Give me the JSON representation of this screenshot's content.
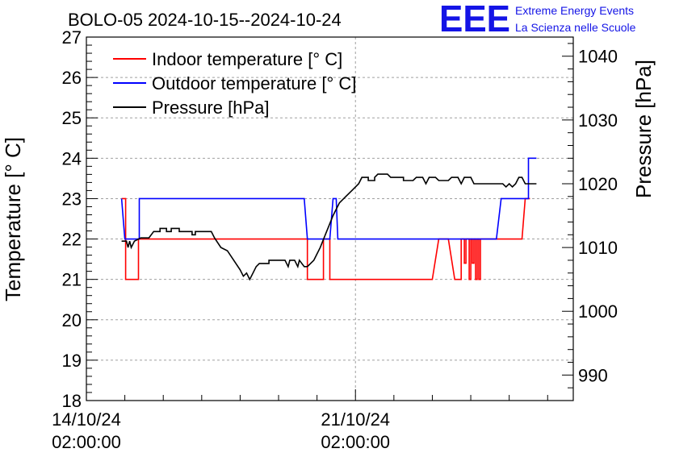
{
  "chart_data": {
    "type": "line",
    "title": "BOLO-05 2024-10-15--2024-10-24",
    "ylabel_left": "Temperature [° C]",
    "ylabel_right": "Pressure [hPa]",
    "ylim_left": [
      18,
      27
    ],
    "ylim_right": [
      986,
      1043
    ],
    "yticks_left": [
      "18",
      "19",
      "20",
      "21",
      "22",
      "23",
      "24",
      "25",
      "26",
      "27"
    ],
    "yticks_right": [
      "990",
      "1000",
      "1010",
      "1020",
      "1030",
      "1040"
    ],
    "xlim": [
      "2024-10-14T02:00",
      "2024-10-26T18:00"
    ],
    "xticks": [
      {
        "date": "14/10/24",
        "time": "02:00:00"
      },
      {
        "date": "21/10/24",
        "time": "02:00:00"
      }
    ],
    "grid": true,
    "legend_position": "top-left",
    "series": [
      {
        "name": "Indoor temperature [° C]",
        "color": "#ff0000",
        "axis": "left",
        "points": [
          [
            "2024-10-15T00:00",
            23
          ],
          [
            "2024-10-15T02:30",
            23
          ],
          [
            "2024-10-15T02:30",
            21
          ],
          [
            "2024-10-15T10:30",
            21
          ],
          [
            "2024-10-15T10:30",
            22
          ],
          [
            "2024-10-19T20:00",
            22
          ],
          [
            "2024-10-19T20:00",
            21
          ],
          [
            "2024-10-20T06:00",
            21
          ],
          [
            "2024-10-20T06:00",
            22
          ],
          [
            "2024-10-20T10:00",
            22
          ],
          [
            "2024-10-20T10:00",
            21
          ],
          [
            "2024-10-23T02:00",
            21
          ],
          [
            "2024-10-23T06:00",
            22
          ],
          [
            "2024-10-23T12:00",
            22
          ],
          [
            "2024-10-23T16:00",
            21
          ],
          [
            "2024-10-23T20:00",
            21
          ],
          [
            "2024-10-23T20:00",
            22
          ],
          [
            "2024-10-23T22:00",
            22
          ],
          [
            "2024-10-23T22:00",
            21.4
          ],
          [
            "2024-10-23T23:00",
            21.4
          ],
          [
            "2024-10-23T23:00",
            22
          ],
          [
            "2024-10-24T01:00",
            22
          ],
          [
            "2024-10-24T01:00",
            21
          ],
          [
            "2024-10-24T02:00",
            21
          ],
          [
            "2024-10-24T02:00",
            22
          ],
          [
            "2024-10-24T03:00",
            22
          ],
          [
            "2024-10-24T03:00",
            21.4
          ],
          [
            "2024-10-24T04:00",
            21.4
          ],
          [
            "2024-10-24T04:00",
            22
          ],
          [
            "2024-10-24T05:00",
            22
          ],
          [
            "2024-10-24T05:00",
            21
          ],
          [
            "2024-10-24T06:00",
            21
          ],
          [
            "2024-10-24T06:00",
            22
          ],
          [
            "2024-10-24T07:00",
            22
          ],
          [
            "2024-10-24T07:00",
            21
          ],
          [
            "2024-10-24T08:00",
            21
          ],
          [
            "2024-10-24T08:00",
            22
          ],
          [
            "2024-10-25T10:00",
            22
          ],
          [
            "2024-10-25T12:00",
            23
          ],
          [
            "2024-10-25T15:00",
            23
          ]
        ]
      },
      {
        "name": "Outdoor temperature [° C]",
        "color": "#0000ff",
        "axis": "left",
        "points": [
          [
            "2024-10-15T00:00",
            23
          ],
          [
            "2024-10-15T02:00",
            22
          ],
          [
            "2024-10-15T11:00",
            22
          ],
          [
            "2024-10-15T11:00",
            23
          ],
          [
            "2024-10-19T18:00",
            23
          ],
          [
            "2024-10-19T20:00",
            22
          ],
          [
            "2024-10-20T10:00",
            22
          ],
          [
            "2024-10-20T12:00",
            23
          ],
          [
            "2024-10-20T14:00",
            23
          ],
          [
            "2024-10-20T15:00",
            22
          ],
          [
            "2024-10-24T18:00",
            22
          ],
          [
            "2024-10-24T21:00",
            23
          ],
          [
            "2024-10-25T14:00",
            23
          ],
          [
            "2024-10-25T14:00",
            24
          ],
          [
            "2024-10-25T19:00",
            24
          ]
        ]
      },
      {
        "name": "Pressure [hPa]",
        "color": "#000000",
        "axis": "right",
        "points": [
          [
            "2024-10-15T00:00",
            1011
          ],
          [
            "2024-10-15T03:00",
            1011
          ],
          [
            "2024-10-15T04:00",
            1010
          ],
          [
            "2024-10-15T05:00",
            1011
          ],
          [
            "2024-10-15T06:00",
            1010
          ],
          [
            "2024-10-15T08:00",
            1011
          ],
          [
            "2024-10-15T12:00",
            1011.5
          ],
          [
            "2024-10-15T17:00",
            1011.5
          ],
          [
            "2024-10-15T20:00",
            1012.5
          ],
          [
            "2024-10-16T00:00",
            1012.5
          ],
          [
            "2024-10-16T00:00",
            1013
          ],
          [
            "2024-10-16T04:00",
            1013
          ],
          [
            "2024-10-16T04:00",
            1012.5
          ],
          [
            "2024-10-16T07:00",
            1012.5
          ],
          [
            "2024-10-16T07:00",
            1013
          ],
          [
            "2024-10-16T12:00",
            1013
          ],
          [
            "2024-10-16T12:00",
            1012.5
          ],
          [
            "2024-10-16T20:00",
            1012.5
          ],
          [
            "2024-10-16T20:00",
            1012
          ],
          [
            "2024-10-16T22:00",
            1012
          ],
          [
            "2024-10-16T22:00",
            1012.5
          ],
          [
            "2024-10-17T08:00",
            1012.5
          ],
          [
            "2024-10-17T10:00",
            1011.5
          ],
          [
            "2024-10-17T14:00",
            1010
          ],
          [
            "2024-10-17T18:00",
            1009.5
          ],
          [
            "2024-10-17T22:00",
            1008
          ],
          [
            "2024-10-18T02:00",
            1006.5
          ],
          [
            "2024-10-18T04:00",
            1005.5
          ],
          [
            "2024-10-18T06:00",
            1006
          ],
          [
            "2024-10-18T08:00",
            1005
          ],
          [
            "2024-10-18T10:00",
            1006
          ],
          [
            "2024-10-18T12:00",
            1007
          ],
          [
            "2024-10-18T14:00",
            1007.5
          ],
          [
            "2024-10-18T20:00",
            1007.5
          ],
          [
            "2024-10-18T20:00",
            1008
          ],
          [
            "2024-10-19T06:00",
            1008
          ],
          [
            "2024-10-19T08:00",
            1007
          ],
          [
            "2024-10-19T09:00",
            1008
          ],
          [
            "2024-10-19T12:00",
            1008
          ],
          [
            "2024-10-19T14:00",
            1007
          ],
          [
            "2024-10-19T15:00",
            1008
          ],
          [
            "2024-10-19T18:00",
            1007
          ],
          [
            "2024-10-19T20:00",
            1007
          ],
          [
            "2024-10-20T00:00",
            1008
          ],
          [
            "2024-10-20T04:00",
            1010
          ],
          [
            "2024-10-20T08:00",
            1012.5
          ],
          [
            "2024-10-20T12:00",
            1015
          ],
          [
            "2024-10-20T14:00",
            1016
          ],
          [
            "2024-10-20T16:00",
            1017
          ],
          [
            "2024-10-20T20:00",
            1018
          ],
          [
            "2024-10-21T00:00",
            1019
          ],
          [
            "2024-10-21T04:00",
            1020
          ],
          [
            "2024-10-21T06:00",
            1021
          ],
          [
            "2024-10-21T10:00",
            1021
          ],
          [
            "2024-10-21T10:00",
            1020.5
          ],
          [
            "2024-10-21T14:00",
            1020.5
          ],
          [
            "2024-10-21T14:00",
            1021
          ],
          [
            "2024-10-21T16:00",
            1021.5
          ],
          [
            "2024-10-21T22:00",
            1021.5
          ],
          [
            "2024-10-22T00:00",
            1021
          ],
          [
            "2024-10-22T08:00",
            1021
          ],
          [
            "2024-10-22T08:00",
            1020.5
          ],
          [
            "2024-10-22T14:00",
            1020.5
          ],
          [
            "2024-10-22T16:00",
            1021
          ],
          [
            "2024-10-22T20:00",
            1021
          ],
          [
            "2024-10-22T22:00",
            1020
          ],
          [
            "2024-10-23T00:00",
            1021
          ],
          [
            "2024-10-23T04:00",
            1021
          ],
          [
            "2024-10-23T06:00",
            1020.5
          ],
          [
            "2024-10-23T12:00",
            1020.5
          ],
          [
            "2024-10-23T14:00",
            1021
          ],
          [
            "2024-10-23T18:00",
            1021
          ],
          [
            "2024-10-23T20:00",
            1020
          ],
          [
            "2024-10-23T22:00",
            1021
          ],
          [
            "2024-10-24T02:00",
            1021
          ],
          [
            "2024-10-24T04:00",
            1020
          ],
          [
            "2024-10-24T18:00",
            1020
          ],
          [
            "2024-10-24T22:00",
            1020
          ],
          [
            "2024-10-25T00:00",
            1019.5
          ],
          [
            "2024-10-25T02:00",
            1020
          ],
          [
            "2024-10-25T04:00",
            1019.5
          ],
          [
            "2024-10-25T06:00",
            1020
          ],
          [
            "2024-10-25T08:00",
            1021
          ],
          [
            "2024-10-25T10:00",
            1021
          ],
          [
            "2024-10-25T12:00",
            1020
          ],
          [
            "2024-10-25T19:00",
            1020
          ]
        ]
      }
    ]
  },
  "logo": {
    "text": "EEE",
    "line1": "Extreme Energy Events",
    "line2": "La Scienza nelle Scuole",
    "color": "#1414e6"
  }
}
